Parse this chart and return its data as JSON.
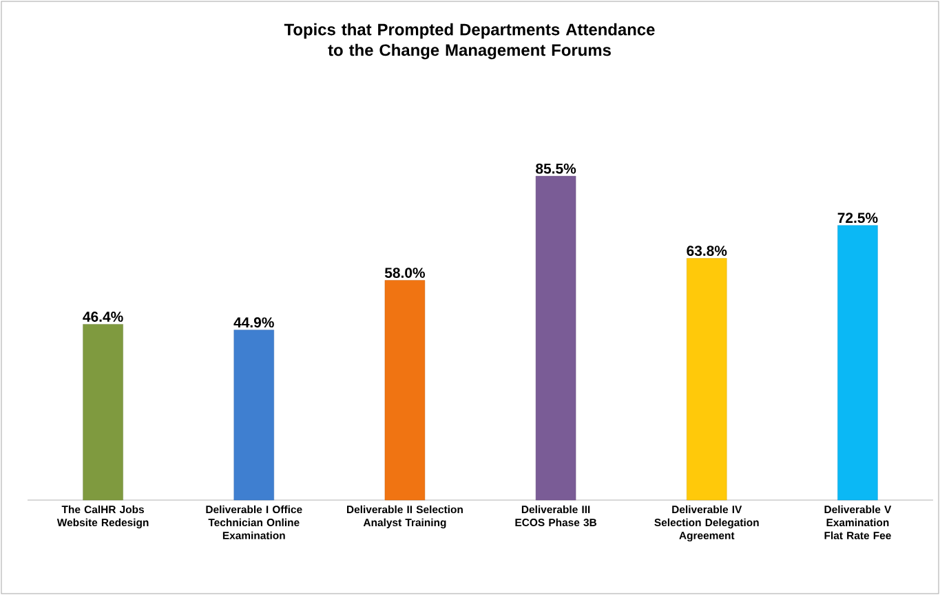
{
  "chart_data": {
    "type": "bar",
    "title": "Topics that Prompted Departments Attendance to the Change Management Forums",
    "categories": [
      "The CalHR Jobs Website Redesign",
      "Deliverable I Office Technician Online Examination",
      "Deliverable II Selection Analyst Training",
      "Deliverable III ECOS Phase 3B",
      "Deliverable IV Selection Delegation Agreement",
      "Deliverable V Examination Flat Rate Fee"
    ],
    "values": [
      46.4,
      44.9,
      58.0,
      85.5,
      63.8,
      72.5
    ],
    "value_labels": [
      "46.4%",
      "44.9%",
      "58.0%",
      "85.5%",
      "63.8%",
      "72.5%"
    ],
    "colors": [
      "#7f9a3f",
      "#3f7fd0",
      "#f07412",
      "#7a5c96",
      "#ffc90a",
      "#0bb8f5"
    ],
    "legend": false
  }
}
